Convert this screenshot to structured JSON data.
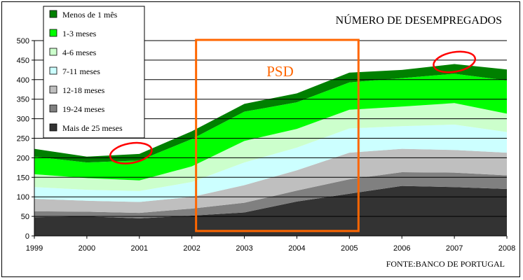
{
  "chart_data": {
    "type": "area",
    "stacked": true,
    "title": "NÚMERO DE DESEMPREGADOS",
    "source": "FONTE:BANCO DE PORTUGAL",
    "x": [
      "1999",
      "2000",
      "2001",
      "2002",
      "2003",
      "2004",
      "2005",
      "2006",
      "2007",
      "2008"
    ],
    "ylim": [
      0,
      500
    ],
    "yticks": [
      "0",
      "50",
      "100",
      "150",
      "200",
      "250",
      "300",
      "350",
      "400",
      "450",
      "500"
    ],
    "grid": true,
    "legend_position": "top-left",
    "series": [
      {
        "name": "Mais de 25 meses",
        "color": "#333333",
        "values": [
          48,
          50,
          45,
          52,
          60,
          88,
          108,
          128,
          125,
          120
        ]
      },
      {
        "name": "19-24 meses",
        "color": "#808080",
        "values": [
          15,
          12,
          14,
          18,
          25,
          28,
          37,
          35,
          37,
          35
        ]
      },
      {
        "name": "12-18 meses",
        "color": "#bfbfbf",
        "values": [
          32,
          28,
          28,
          30,
          45,
          52,
          68,
          60,
          58,
          58
        ]
      },
      {
        "name": "7-11 meses",
        "color": "#ccffff",
        "values": [
          30,
          28,
          28,
          38,
          58,
          58,
          62,
          58,
          65,
          53
        ]
      },
      {
        "name": "4-6 meses",
        "color": "#ccffcc",
        "values": [
          33,
          30,
          27,
          40,
          55,
          48,
          48,
          50,
          55,
          47
        ]
      },
      {
        "name": "1-3 meses",
        "color": "#00ff00",
        "values": [
          45,
          40,
          51,
          70,
          75,
          68,
          70,
          73,
          75,
          85
        ]
      },
      {
        "name": "Menos de 1 mês",
        "color": "#008000",
        "values": [
          20,
          15,
          17,
          20,
          20,
          23,
          25,
          21,
          25,
          28
        ]
      }
    ],
    "annotations": [
      {
        "type": "rectangle",
        "label": "PSD",
        "color": "#ff6600",
        "x_range": [
          "2002",
          "2005"
        ]
      },
      {
        "type": "ellipse",
        "color": "#ff0000",
        "at": "2001"
      },
      {
        "type": "ellipse",
        "color": "#ff0000",
        "at": "2007"
      }
    ]
  }
}
